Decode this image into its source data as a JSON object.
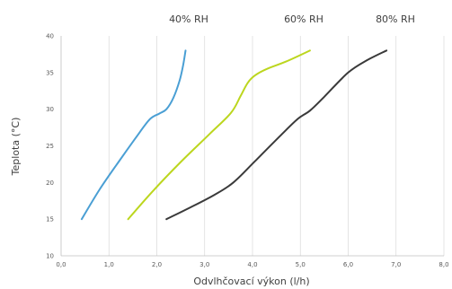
{
  "chart_data": {
    "type": "line",
    "title": "",
    "xlabel": "Odvlhčovací výkon (l/h)",
    "ylabel": "Teplota (°C)",
    "xlim": [
      0,
      8
    ],
    "ylim": [
      10,
      40
    ],
    "x_ticks": [
      "0,0",
      "1,0",
      "2,0",
      "3,0",
      "4,0",
      "5,0",
      "6,0",
      "7,0",
      "8,0"
    ],
    "y_ticks": [
      "10",
      "15",
      "20",
      "25",
      "30",
      "35",
      "40"
    ],
    "grid": "vertical",
    "series": [
      {
        "name": "40% RH",
        "color": "#4a9fd4",
        "points": [
          [
            0.43,
            15
          ],
          [
            0.8,
            19
          ],
          [
            1.2,
            22.8
          ],
          [
            1.55,
            26
          ],
          [
            1.85,
            28.6
          ],
          [
            2.05,
            29.4
          ],
          [
            2.2,
            30
          ],
          [
            2.35,
            31.6
          ],
          [
            2.48,
            34
          ],
          [
            2.55,
            36
          ],
          [
            2.6,
            38
          ]
        ]
      },
      {
        "name": "60% RH",
        "color": "#bcd61e",
        "points": [
          [
            1.4,
            15
          ],
          [
            1.9,
            18.7
          ],
          [
            2.5,
            22.8
          ],
          [
            3.1,
            26.6
          ],
          [
            3.55,
            29.5
          ],
          [
            3.75,
            31.8
          ],
          [
            3.9,
            33.6
          ],
          [
            4.05,
            34.6
          ],
          [
            4.3,
            35.5
          ],
          [
            4.7,
            36.5
          ],
          [
            5.2,
            38
          ]
        ]
      },
      {
        "name": "80% RH",
        "color": "#3a3a3a",
        "points": [
          [
            2.2,
            15
          ],
          [
            2.7,
            16.6
          ],
          [
            3.2,
            18.3
          ],
          [
            3.6,
            20
          ],
          [
            4.05,
            22.9
          ],
          [
            4.6,
            26.5
          ],
          [
            4.95,
            28.7
          ],
          [
            5.2,
            29.8
          ],
          [
            5.5,
            31.7
          ],
          [
            6.0,
            35
          ],
          [
            6.4,
            36.7
          ],
          [
            6.8,
            38
          ]
        ]
      }
    ]
  }
}
